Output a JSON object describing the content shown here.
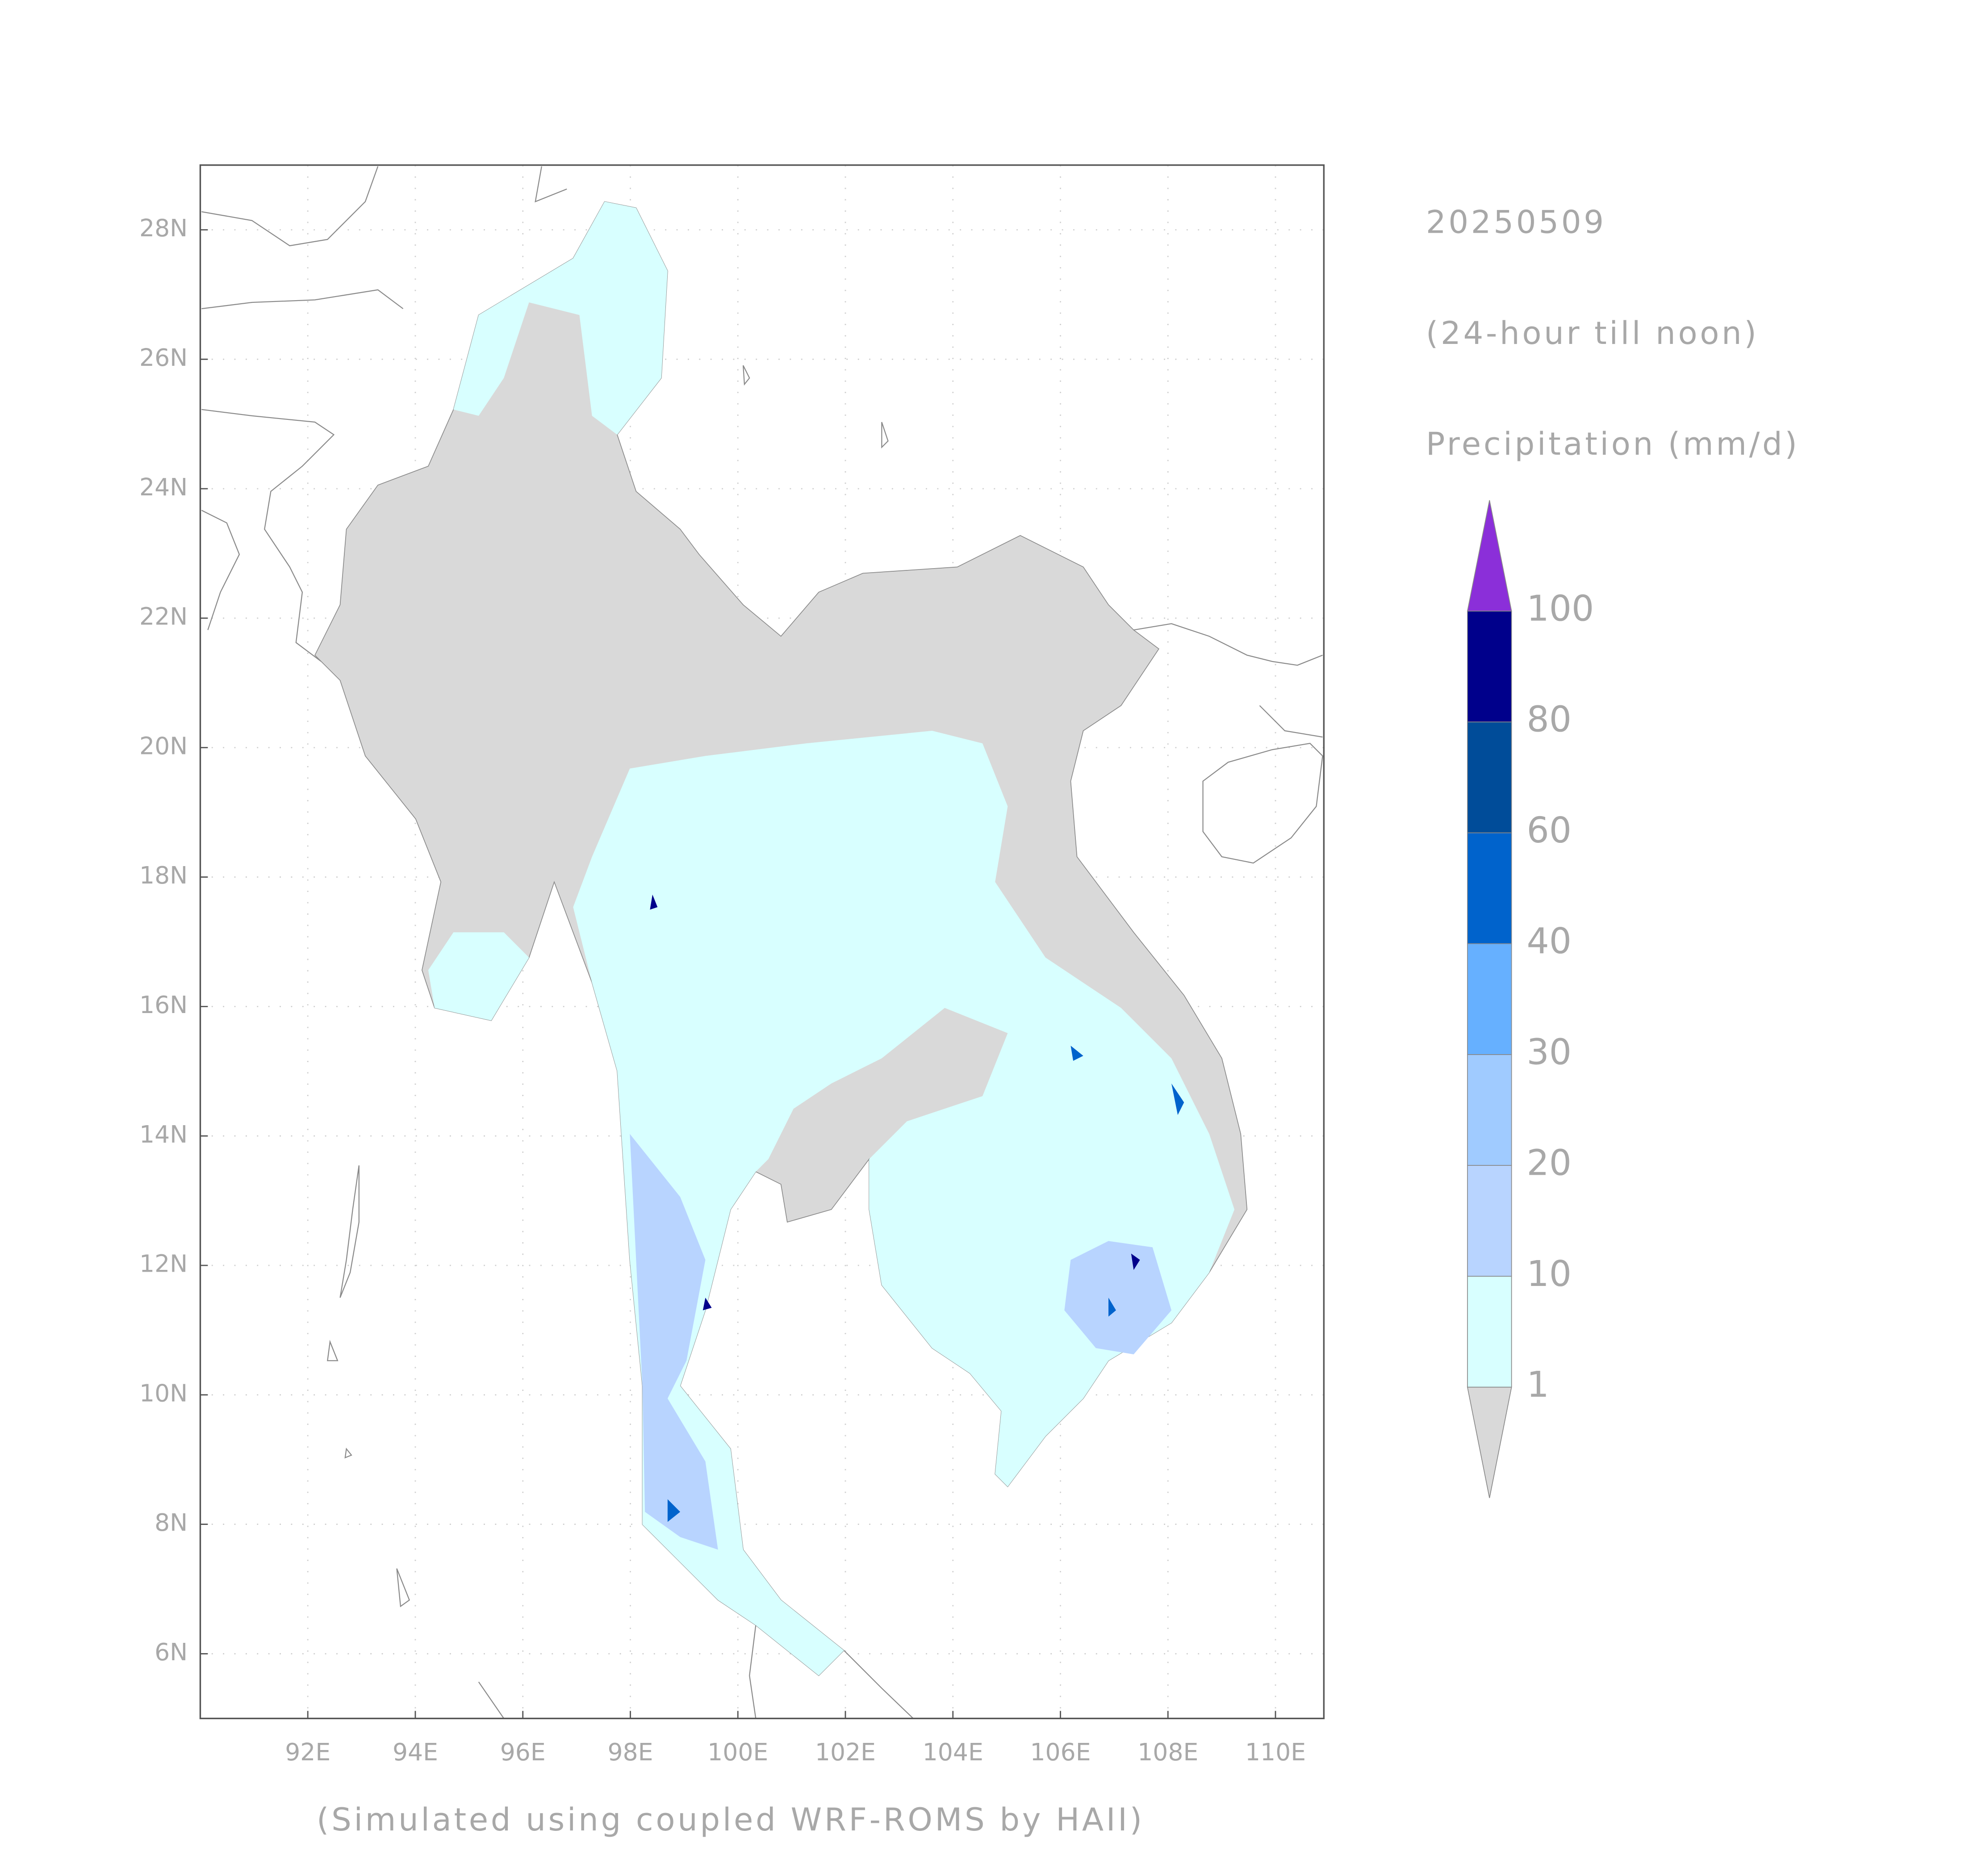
{
  "map": {
    "title": "20250509",
    "subtitle": "(24-hour till noon)",
    "variable": "Precipitation (mm/d)",
    "footer": "(Simulated using coupled WRF-ROMS by HAII)",
    "xlim": [
      90,
      110.9
    ],
    "ylim": [
      5,
      29
    ],
    "xticks": [
      {
        "value": 92,
        "label": "92E"
      },
      {
        "value": 94,
        "label": "94E"
      },
      {
        "value": 96,
        "label": "96E"
      },
      {
        "value": 98,
        "label": "98E"
      },
      {
        "value": 100,
        "label": "100E"
      },
      {
        "value": 102,
        "label": "102E"
      },
      {
        "value": 104,
        "label": "104E"
      },
      {
        "value": 106,
        "label": "106E"
      },
      {
        "value": 108,
        "label": "108E"
      },
      {
        "value": 110,
        "label": "110E"
      }
    ],
    "yticks": [
      {
        "value": 6,
        "label": "6N"
      },
      {
        "value": 8,
        "label": "8N"
      },
      {
        "value": 10,
        "label": "10N"
      },
      {
        "value": 12,
        "label": "12N"
      },
      {
        "value": 14,
        "label": "14N"
      },
      {
        "value": 16,
        "label": "16N"
      },
      {
        "value": 18,
        "label": "18N"
      },
      {
        "value": 20,
        "label": "20N"
      },
      {
        "value": 22,
        "label": "22N"
      },
      {
        "value": 24,
        "label": "24N"
      },
      {
        "value": 26,
        "label": "26N"
      },
      {
        "value": 28,
        "label": "28N"
      }
    ],
    "grid": true,
    "colorbar": {
      "levels": [
        1,
        10,
        20,
        30,
        40,
        60,
        80,
        100
      ],
      "colors": [
        "#d8ffff",
        "#b8d4ff",
        "#a0cbff",
        "#66b0ff",
        "#0063cc",
        "#004c99",
        "#00008b"
      ],
      "under_color": "#d9d9d9",
      "over_color": "#8b2fd9"
    }
  }
}
